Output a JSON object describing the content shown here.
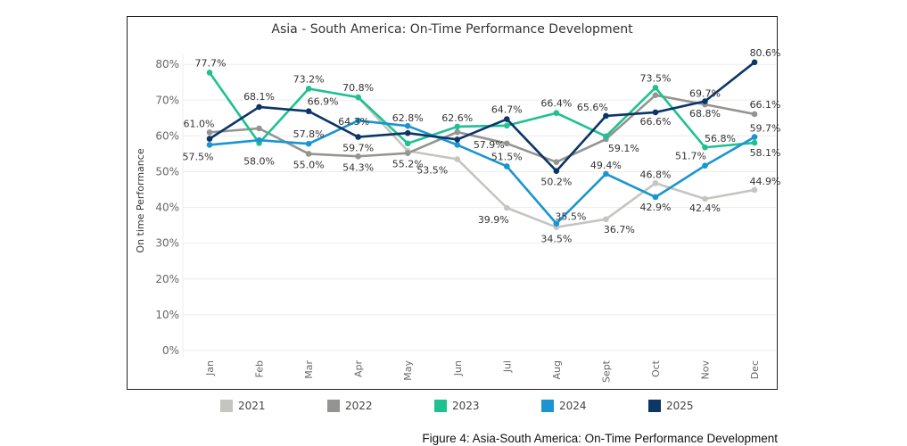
{
  "chart_data": {
    "type": "line",
    "title": "Asia - South America: On-Time Performance Development",
    "ylabel": "On time Performance",
    "xlabel": "",
    "categories": [
      "Jan",
      "Feb",
      "Mar",
      "Apr",
      "May",
      "Jun",
      "Jul",
      "Aug",
      "Sept",
      "Oct",
      "Nov",
      "Dec"
    ],
    "yticks": [
      "0%",
      "10%",
      "20%",
      "30%",
      "40%",
      "50%",
      "60%",
      "70%",
      "80%"
    ],
    "ylim": [
      0,
      80
    ],
    "grid": true,
    "legend_position": "bottom",
    "series": [
      {
        "name": "2021",
        "color": "#c5c5c0",
        "values": [
          null,
          null,
          null,
          70.8,
          55.8,
          53.5,
          39.9,
          34.5,
          36.7,
          46.8,
          42.4,
          44.9
        ],
        "labels": [
          null,
          null,
          null,
          null,
          null,
          "53.5%",
          "39.9%",
          "34.5%",
          "36.7%",
          "46.8%",
          "42.4%",
          "44.9%"
        ]
      },
      {
        "name": "2022",
        "color": "#949490",
        "values": [
          61.0,
          62.1,
          55.0,
          54.3,
          55.2,
          61.1,
          57.9,
          52.7,
          59.1,
          71.4,
          68.8,
          66.1
        ],
        "labels": [
          "61.0%",
          null,
          "55.0%",
          "54.3%",
          "55.2%",
          null,
          "57.9%",
          null,
          "59.1%",
          null,
          "68.8%",
          "66.1%"
        ]
      },
      {
        "name": "2023",
        "color": "#1fc190",
        "values": [
          77.7,
          58.0,
          73.2,
          70.8,
          57.9,
          62.6,
          62.9,
          66.4,
          59.9,
          73.5,
          56.8,
          58.1
        ],
        "labels": [
          "77.7%",
          "58.0%",
          "73.2%",
          "70.8%",
          null,
          "62.6%",
          null,
          "66.4%",
          null,
          "73.5%",
          "56.8%",
          "58.1%"
        ]
      },
      {
        "name": "2024",
        "color": "#1a95d1",
        "values": [
          57.5,
          58.8,
          57.8,
          64.3,
          62.8,
          57.5,
          51.5,
          35.5,
          49.4,
          42.9,
          51.7,
          59.7
        ],
        "labels": [
          "57.5%",
          null,
          "57.8%",
          "64.3%",
          "62.8%",
          null,
          "51.5%",
          "35.5%",
          "49.4%",
          "42.9%",
          "51.7%",
          "59.7%"
        ]
      },
      {
        "name": "2025",
        "color": "#0c3666",
        "values": [
          59.2,
          68.1,
          66.9,
          59.7,
          60.8,
          59.0,
          64.7,
          50.2,
          65.6,
          66.6,
          69.7,
          80.6
        ],
        "labels": [
          null,
          "68.1%",
          "66.9%",
          "59.7%",
          null,
          null,
          "64.7%",
          "50.2%",
          "65.6%",
          "66.6%",
          "69.7%",
          "80.6%"
        ]
      }
    ]
  },
  "caption": "Figure 4: Asia-South America: On-Time Performance Development"
}
